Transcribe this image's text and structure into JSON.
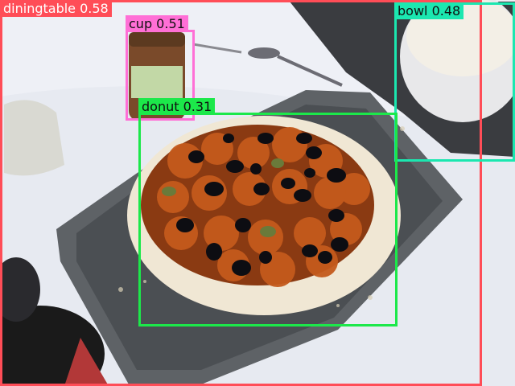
{
  "scene": {
    "description_icon": "photo-pizza-on-tray",
    "colors": {
      "tablecloth": "#eef0f6",
      "tray": "#5e6266",
      "crust": "#f0e7d4",
      "sauce": "#8a3a12",
      "pepperoni": "#c45a1c",
      "olive": "#0d0d12"
    }
  },
  "detections": [
    {
      "id": "diningtable",
      "label": "diningtable 0.58",
      "color": "#ff4d57"
    },
    {
      "id": "cup",
      "label": "cup 0.51",
      "color": "#ff6fd6"
    },
    {
      "id": "bowl",
      "label": "bowl 0.48",
      "color": "#1be7b0"
    },
    {
      "id": "donut",
      "label": "donut 0.31",
      "color": "#1ce84a"
    }
  ]
}
